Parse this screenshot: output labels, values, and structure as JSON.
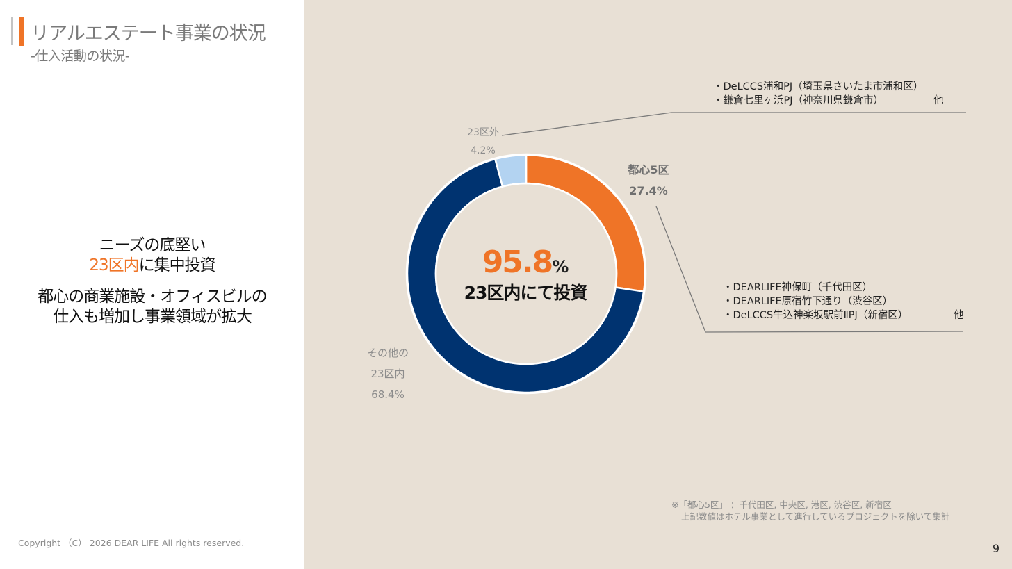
{
  "header": {
    "title": "リアルエステート事業の状況",
    "subtitle": "-仕入活動の状況-"
  },
  "message": {
    "line1": "ニーズの底堅い",
    "line2_highlight": "23区内",
    "line2_rest": "に集中投資",
    "line3": "都心の商業施設・オフィスビルの",
    "line4": "仕入も増加し事業領域が拡大"
  },
  "chart_data": {
    "type": "pie",
    "style": "donut",
    "slices": [
      {
        "name": "都心5区",
        "value": 27.4,
        "label": "27.4%",
        "color": "#ef7427"
      },
      {
        "name": "その他の23区内",
        "value": 68.4,
        "label": "68.4%",
        "color": "#003370"
      },
      {
        "name": "23区外",
        "value": 4.2,
        "label": "4.2%",
        "color": "#b3d3f1"
      }
    ],
    "labels": {
      "toshin_name": "都心5区",
      "toshin_value": "27.4%",
      "other_name1": "その他の",
      "other_name2": "23区内",
      "other_value": "68.4%",
      "outside_name": "23区外",
      "outside_value": "4.2%"
    },
    "center": {
      "value": "95.8",
      "unit": "%",
      "text": "23区内にて投資"
    }
  },
  "projects_outside": {
    "items": [
      "・DeLCCS浦和PJ（埼玉県さいたま市浦和区）",
      "・鎌倉七里ヶ浜PJ（神奈川県鎌倉市）"
    ],
    "other": "他"
  },
  "projects_toshin": {
    "items": [
      "・DEARLIFE神保町（千代田区）",
      "・DEARLIFE原宿竹下通り（渋谷区）",
      "・DeLCCS牛込神楽坂駅前ⅡPJ（新宿区）"
    ],
    "other": "他"
  },
  "notes": {
    "line1": "※「都心5区」 ：千代田区, 中央区, 港区, 渋谷区, 新宿区",
    "line2": "上記数値はホテル事業として進行しているプロジェクトを除いて集計"
  },
  "footer": {
    "copyright": "Copyright （C） 2026  DEAR LIFE  All rights reserved.",
    "page_number": "9"
  }
}
